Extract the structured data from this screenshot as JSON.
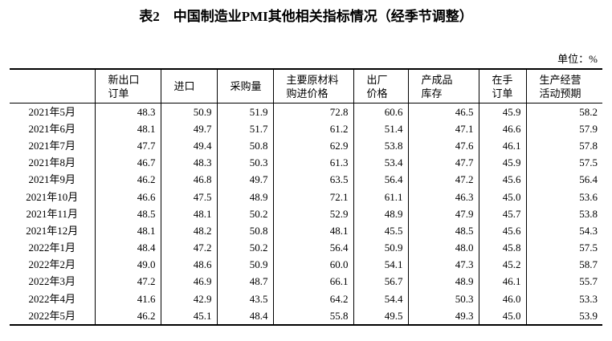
{
  "title": "表2　中国制造业PMI其他相关指标情况（经季节调整）",
  "unit": "单位：%",
  "table": {
    "header": [
      "",
      "新出口\n订单",
      "进口",
      "采购量",
      "主要原材料\n购进价格",
      "出厂\n价格",
      "产成品\n库存",
      "在手\n订单",
      "生产经营\n活动预期"
    ],
    "rows": [
      [
        "2021年5月",
        "48.3",
        "50.9",
        "51.9",
        "72.8",
        "60.6",
        "46.5",
        "45.9",
        "58.2"
      ],
      [
        "2021年6月",
        "48.1",
        "49.7",
        "51.7",
        "61.2",
        "51.4",
        "47.1",
        "46.6",
        "57.9"
      ],
      [
        "2021年7月",
        "47.7",
        "49.4",
        "50.8",
        "62.9",
        "53.8",
        "47.6",
        "46.1",
        "57.8"
      ],
      [
        "2021年8月",
        "46.7",
        "48.3",
        "50.3",
        "61.3",
        "53.4",
        "47.7",
        "45.9",
        "57.5"
      ],
      [
        "2021年9月",
        "46.2",
        "46.8",
        "49.7",
        "63.5",
        "56.4",
        "47.2",
        "45.6",
        "56.4"
      ],
      [
        "2021年10月",
        "46.6",
        "47.5",
        "48.9",
        "72.1",
        "61.1",
        "46.3",
        "45.0",
        "53.6"
      ],
      [
        "2021年11月",
        "48.5",
        "48.1",
        "50.2",
        "52.9",
        "48.9",
        "47.9",
        "45.7",
        "53.8"
      ],
      [
        "2021年12月",
        "48.1",
        "48.2",
        "50.8",
        "48.1",
        "45.5",
        "48.5",
        "45.6",
        "54.3"
      ],
      [
        "2022年1月",
        "48.4",
        "47.2",
        "50.2",
        "56.4",
        "50.9",
        "48.0",
        "45.8",
        "57.5"
      ],
      [
        "2022年2月",
        "49.0",
        "48.6",
        "50.9",
        "60.0",
        "54.1",
        "47.3",
        "45.2",
        "58.7"
      ],
      [
        "2022年3月",
        "47.2",
        "46.9",
        "48.7",
        "66.1",
        "56.7",
        "48.9",
        "46.1",
        "55.7"
      ],
      [
        "2022年4月",
        "41.6",
        "42.9",
        "43.5",
        "64.2",
        "54.4",
        "50.3",
        "46.0",
        "53.3"
      ],
      [
        "2022年5月",
        "46.2",
        "45.1",
        "48.4",
        "55.8",
        "49.5",
        "49.3",
        "45.0",
        "53.9"
      ]
    ]
  }
}
